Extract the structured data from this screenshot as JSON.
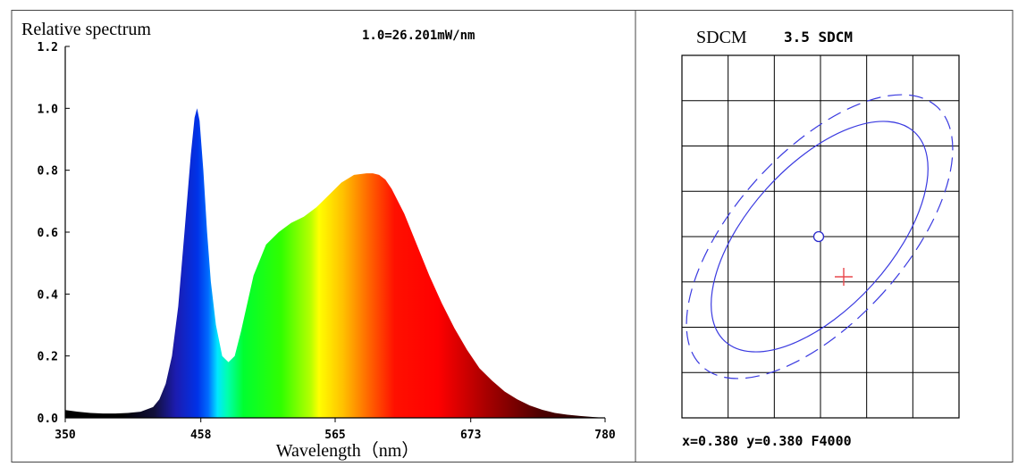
{
  "chart_data": [
    {
      "type": "area",
      "title": "Relative spectrum",
      "subtitle": "1.0=26.201mW/nm",
      "xlabel": "Wavelength（nm）",
      "ylabel": "",
      "xlim": [
        350,
        780
      ],
      "ylim": [
        0,
        1.2
      ],
      "x_ticks": [
        "350",
        "458",
        "565",
        "673",
        "780"
      ],
      "y_ticks": [
        "0.0",
        "0.2",
        "0.4",
        "0.6",
        "0.8",
        "1.0",
        "1.2"
      ],
      "grid": false,
      "fill": "visible-spectrum gradient",
      "x": [
        350,
        360,
        370,
        380,
        390,
        400,
        410,
        420,
        425,
        430,
        435,
        440,
        445,
        450,
        453,
        455,
        457,
        460,
        463,
        466,
        470,
        475,
        480,
        485,
        490,
        500,
        510,
        520,
        530,
        540,
        550,
        560,
        570,
        580,
        590,
        595,
        600,
        605,
        610,
        620,
        630,
        640,
        650,
        660,
        670,
        680,
        690,
        700,
        710,
        720,
        730,
        740,
        750,
        760,
        770,
        780
      ],
      "values": [
        0.025,
        0.02,
        0.016,
        0.014,
        0.014,
        0.016,
        0.02,
        0.035,
        0.06,
        0.11,
        0.2,
        0.36,
        0.6,
        0.85,
        0.97,
        1.0,
        0.96,
        0.8,
        0.6,
        0.44,
        0.3,
        0.2,
        0.18,
        0.2,
        0.28,
        0.46,
        0.56,
        0.6,
        0.63,
        0.65,
        0.68,
        0.72,
        0.76,
        0.785,
        0.79,
        0.79,
        0.785,
        0.77,
        0.74,
        0.66,
        0.56,
        0.46,
        0.37,
        0.29,
        0.22,
        0.16,
        0.12,
        0.085,
        0.06,
        0.04,
        0.026,
        0.016,
        0.01,
        0.006,
        0.003,
        0.0
      ]
    },
    {
      "type": "scatter",
      "title": "SDCM",
      "value_label": "3.5 SDCM",
      "footer": "x=0.380 y=0.380 F4000",
      "grid": true,
      "grid_columns": 6,
      "grid_rows": 8,
      "center": {
        "marker": "circle",
        "color": "#2b2bcc"
      },
      "measured_point": {
        "marker": "cross",
        "color": "#e8484d"
      },
      "ellipse_color": "#3a3ae0"
    }
  ]
}
